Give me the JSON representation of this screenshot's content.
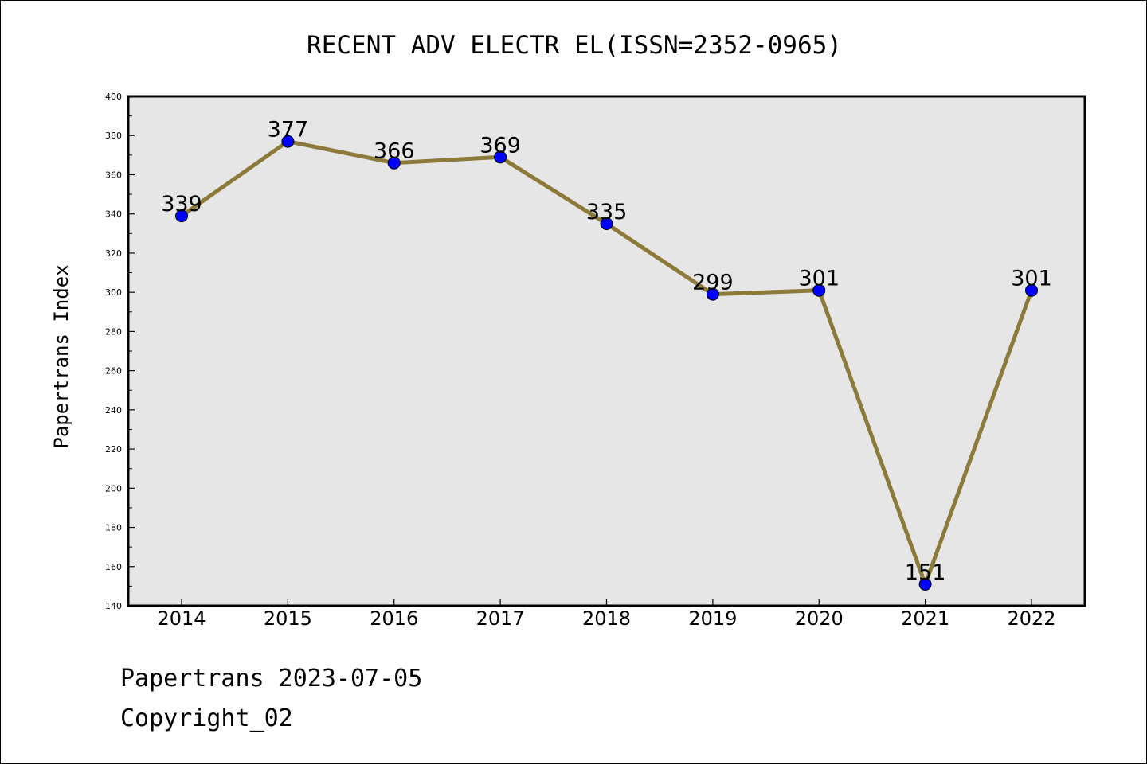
{
  "chart_data": {
    "type": "line",
    "title": "RECENT ADV ELECTR EL(ISSN=2352-0965)",
    "xlabel": "",
    "ylabel": "Papertrans Index",
    "categories": [
      "2014",
      "2015",
      "2016",
      "2017",
      "2018",
      "2019",
      "2020",
      "2021",
      "2022"
    ],
    "series": [
      {
        "values": [
          339,
          377,
          366,
          369,
          335,
          299,
          301,
          151,
          301
        ]
      }
    ],
    "data_labels": [
      "339",
      "377",
      "366",
      "369",
      "335",
      "299",
      "301",
      "151",
      "301"
    ],
    "ylim": [
      140,
      400
    ],
    "yticks": [
      "140",
      "160",
      "180",
      "200",
      "220",
      "240",
      "260",
      "280",
      "300",
      "320",
      "340",
      "360",
      "380",
      "400"
    ],
    "grid": false,
    "legend": "none",
    "colors": {
      "line": "#8c7a3a",
      "marker": "#0000ff",
      "plot_background": "#e6e6e6"
    }
  },
  "footer": {
    "line1": "Papertrans 2023-07-05",
    "line2": "Copyright_02"
  }
}
